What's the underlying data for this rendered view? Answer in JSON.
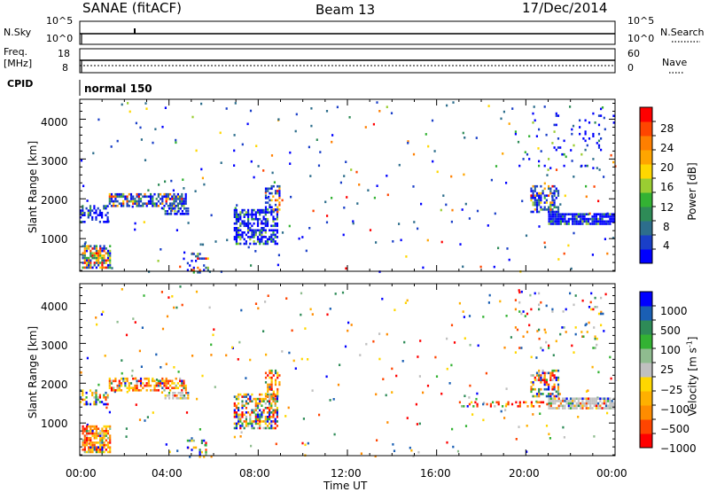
{
  "header": {
    "station": "SANAE (fitACF)",
    "beam": "Beam 13",
    "date": "17/Dec/2014"
  },
  "top_strips": {
    "nsky_label": "N.Sky",
    "nsky_ticks": [
      "10^5",
      "10^0"
    ],
    "nsearch_label": "N.Search",
    "nsearch_ticks": [
      "10^5",
      "10^0"
    ],
    "freq_label_line1": "Freq.",
    "freq_label_line2": "[MHz]",
    "freq_ticks": [
      "18",
      "8"
    ],
    "nave_label": "Nave",
    "nave_ticks": [
      "60",
      "0"
    ],
    "cpid_label": "CPID",
    "cpid_value": "normal 150"
  },
  "chart_data": [
    {
      "type": "heatmap",
      "name": "power-panel",
      "ylabel": "Slant Range [km]",
      "xlabel": "",
      "yticks": [
        "1000",
        "2000",
        "3000",
        "4000"
      ],
      "xlim": [
        0,
        24
      ],
      "ylim": [
        180,
        4500
      ],
      "colorbar_label": "Power [dB]",
      "colorbar_ticks": [
        "28",
        "24",
        "20",
        "16",
        "12",
        "8",
        "4"
      ],
      "colorbar_colors": [
        "#0000ff",
        "#1a3fc8",
        "#2d6e8c",
        "#2e8b57",
        "#33b233",
        "#9acd32",
        "#ffd700",
        "#ffa500",
        "#ff7f00",
        "#ff4500",
        "#ff0000"
      ],
      "echo_regions": [
        {
          "t0": 0.1,
          "t1": 1.4,
          "r0": 300,
          "r1": 900,
          "density": 0.75,
          "level": "high"
        },
        {
          "t0": 0.0,
          "t1": 1.3,
          "r0": 1450,
          "r1": 1900,
          "density": 0.45,
          "level": "low"
        },
        {
          "t0": 1.3,
          "t1": 4.8,
          "r0": 1850,
          "r1": 2200,
          "density": 0.65,
          "level": "mixed"
        },
        {
          "t0": 3.8,
          "t1": 4.9,
          "r0": 1650,
          "r1": 1850,
          "density": 0.7,
          "level": "low"
        },
        {
          "t0": 6.9,
          "t1": 8.9,
          "r0": 900,
          "r1": 1800,
          "density": 0.55,
          "level": "low"
        },
        {
          "t0": 8.3,
          "t1": 9.0,
          "r0": 1700,
          "r1": 2400,
          "density": 0.5,
          "level": "mixed"
        },
        {
          "t0": 20.2,
          "t1": 21.5,
          "r0": 1700,
          "r1": 2400,
          "density": 0.5,
          "level": "mixed"
        },
        {
          "t0": 21.0,
          "t1": 24.0,
          "r0": 1400,
          "r1": 1700,
          "density": 0.85,
          "level": "low"
        },
        {
          "t0": 19.5,
          "t1": 23.5,
          "r0": 2800,
          "r1": 4400,
          "density": 0.05,
          "level": "low"
        },
        {
          "t0": 4.8,
          "t1": 5.8,
          "r0": 180,
          "r1": 700,
          "density": 0.3,
          "level": "mixed"
        }
      ]
    },
    {
      "type": "heatmap",
      "name": "velocity-panel",
      "ylabel": "Slant Range [km]",
      "xlabel": "Time UT",
      "xticks": [
        "00:00",
        "04:00",
        "08:00",
        "12:00",
        "16:00",
        "20:00",
        "00:00"
      ],
      "yticks": [
        "1000",
        "2000",
        "3000",
        "4000"
      ],
      "xlim": [
        0,
        24
      ],
      "ylim": [
        180,
        4500
      ],
      "colorbar_label": "Velocity [m s",
      "colorbar_label_sup": "-1",
      "colorbar_label_end": "]",
      "colorbar_ticks": [
        "1000",
        "500",
        "100",
        "25",
        "−25",
        "−100",
        "−500",
        "−1000"
      ],
      "colorbar_colors": [
        "#ff0000",
        "#ff4500",
        "#ff8c00",
        "#ffb000",
        "#ffd700",
        "#c0c0c0",
        "#8fbc8f",
        "#33b233",
        "#2e8b57",
        "#1a5fb4",
        "#0000ff"
      ],
      "echo_regions": [
        {
          "t0": 0.1,
          "t1": 1.4,
          "r0": 300,
          "r1": 1000,
          "density": 0.75,
          "level": "neg"
        },
        {
          "t0": 0.0,
          "t1": 1.3,
          "r0": 1500,
          "r1": 1900,
          "density": 0.35,
          "level": "mixed"
        },
        {
          "t0": 1.3,
          "t1": 4.8,
          "r0": 1850,
          "r1": 2200,
          "density": 0.55,
          "level": "neg"
        },
        {
          "t0": 3.8,
          "t1": 4.9,
          "r0": 1650,
          "r1": 1850,
          "density": 0.6,
          "level": "grey"
        },
        {
          "t0": 6.9,
          "t1": 8.9,
          "r0": 900,
          "r1": 1800,
          "density": 0.55,
          "level": "mixed"
        },
        {
          "t0": 8.3,
          "t1": 9.0,
          "r0": 1700,
          "r1": 2400,
          "density": 0.5,
          "level": "neg"
        },
        {
          "t0": 20.2,
          "t1": 21.5,
          "r0": 1700,
          "r1": 2400,
          "density": 0.5,
          "level": "mixed"
        },
        {
          "t0": 21.0,
          "t1": 24.0,
          "r0": 1400,
          "r1": 1700,
          "density": 0.85,
          "level": "grey"
        },
        {
          "t0": 17.0,
          "t1": 21.0,
          "r0": 1450,
          "r1": 1600,
          "density": 0.25,
          "level": "neg"
        },
        {
          "t0": 19.5,
          "t1": 23.5,
          "r0": 2800,
          "r1": 4400,
          "density": 0.05,
          "level": "mixed"
        },
        {
          "t0": 4.8,
          "t1": 5.8,
          "r0": 180,
          "r1": 700,
          "density": 0.3,
          "level": "mixed"
        }
      ]
    }
  ]
}
